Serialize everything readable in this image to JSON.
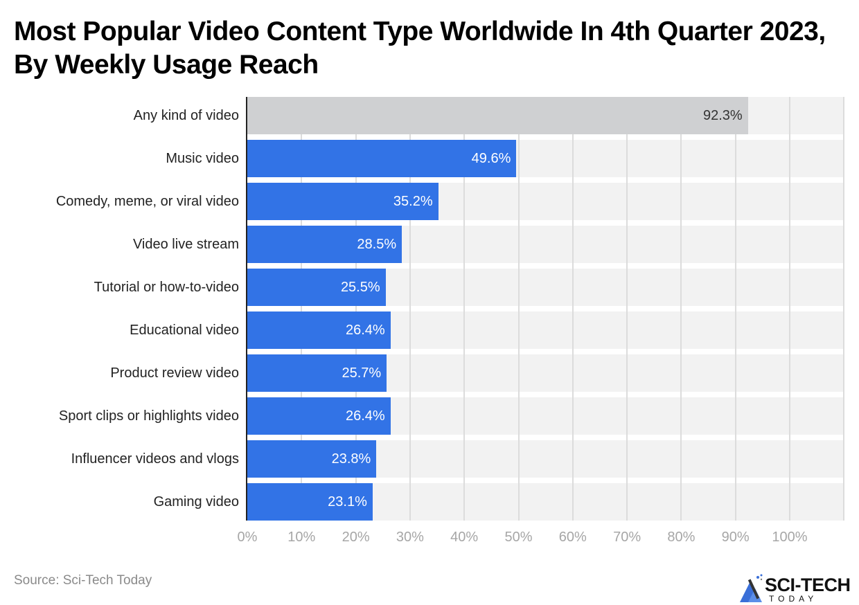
{
  "title": "Most Popular Video Content Type Worldwide In 4th Quarter 2023, By Weekly Usage Reach",
  "source": "Source: Sci-Tech Today",
  "logo": {
    "brand": "SCI-TECH",
    "sub": "TODAY"
  },
  "colors": {
    "highlight": "#3273e6",
    "reference": "#cfd0d2",
    "row_background": "#f2f2f2",
    "gridline": "#dcdcdc"
  },
  "chart_data": {
    "type": "bar",
    "orientation": "horizontal",
    "title": "Most Popular Video Content Type Worldwide In 4th Quarter 2023, By Weekly Usage Reach",
    "xlabel": "",
    "ylabel": "",
    "xlim": [
      0,
      100
    ],
    "grid": true,
    "legend": null,
    "categories": [
      "Any kind of video",
      "Music video",
      "Comedy, meme, or viral video",
      "Video live stream",
      "Tutorial or how-to-video",
      "Educational video",
      "Product review video",
      "Sport clips or highlights video",
      "Influencer videos and vlogs",
      "Gaming video"
    ],
    "values": [
      92.3,
      49.6,
      35.2,
      28.5,
      25.5,
      26.4,
      25.7,
      26.4,
      23.8,
      23.1
    ],
    "labels": [
      "92.3%",
      "49.6%",
      "35.2%",
      "28.5%",
      "25.5%",
      "26.4%",
      "25.7%",
      "26.4%",
      "23.8%",
      "23.1%"
    ],
    "ticks": [
      "0%",
      "10%",
      "20%",
      "30%",
      "40%",
      "50%",
      "60%",
      "70%",
      "80%",
      "90%",
      "100%"
    ],
    "unit": "%"
  }
}
